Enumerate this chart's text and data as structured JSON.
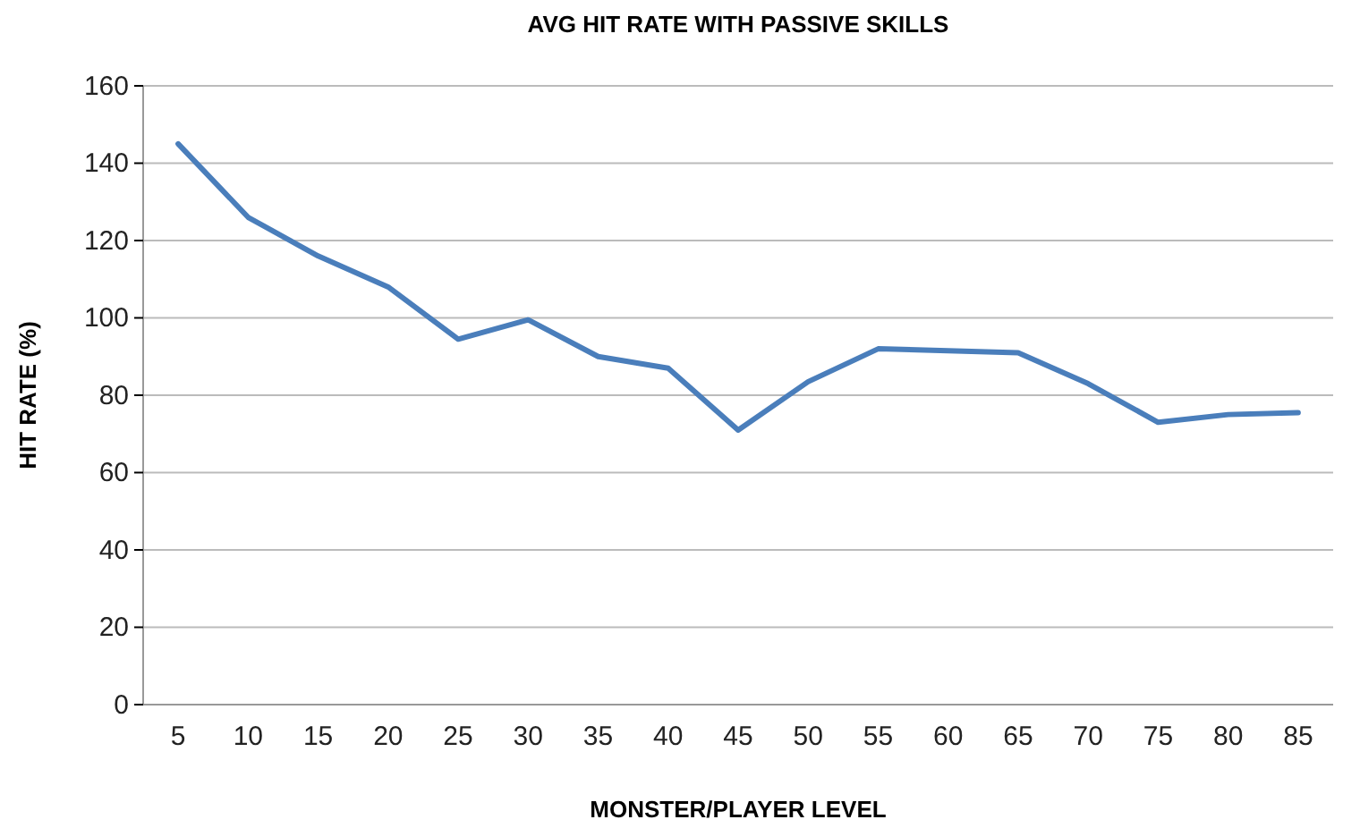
{
  "chart_data": {
    "type": "line",
    "title": "AVG HIT RATE WITH PASSIVE SKILLS",
    "xlabel": "MONSTER/PLAYER LEVEL",
    "ylabel": "HIT RATE (%)",
    "categories": [
      "5",
      "10",
      "15",
      "20",
      "25",
      "30",
      "35",
      "40",
      "45",
      "50",
      "55",
      "60",
      "65",
      "70",
      "75",
      "80",
      "85"
    ],
    "series": [
      {
        "color": "#4a7ebb",
        "values": [
          145,
          126,
          116,
          108,
          94.5,
          99.5,
          90,
          87,
          71,
          83.5,
          92,
          91.5,
          91,
          83,
          73,
          75,
          75.5
        ]
      }
    ],
    "ylim": [
      0,
      160
    ],
    "yticks": [
      0,
      20,
      40,
      60,
      80,
      100,
      120,
      140,
      160
    ],
    "grid": "y",
    "marker": "none",
    "line_style": "solid"
  }
}
